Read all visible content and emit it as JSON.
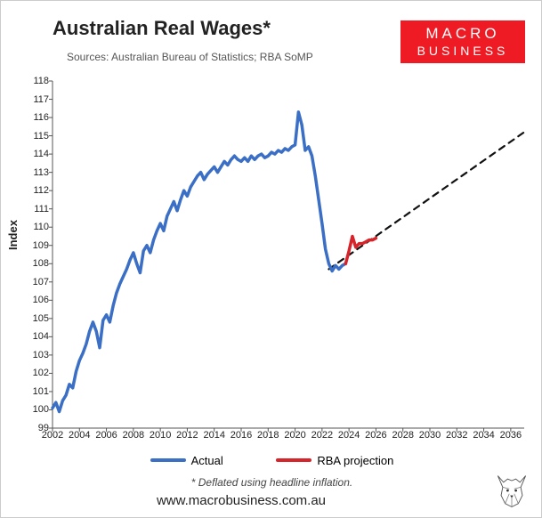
{
  "title": "Australian Real Wages*",
  "sources": "Sources: Australian Bureau of Statistics; RBA SoMP",
  "logo": {
    "line1": "MACRO",
    "line2": "BUSINESS",
    "bg": "#ee1b24",
    "fg": "#ffffff"
  },
  "ylabel": "Index",
  "footnote": "* Deflated using headline inflation.",
  "url": "www.macrobusiness.com.au",
  "legend": {
    "actual": {
      "label": "Actual",
      "color": "#3b6fc6"
    },
    "projection": {
      "label": "RBA projection",
      "color": "#d6242a"
    }
  },
  "chart": {
    "type": "line",
    "background_color": "#ffffff",
    "grid_on": false,
    "xlim": [
      2002,
      2037
    ],
    "ylim": [
      99,
      118
    ],
    "yticks": [
      99,
      100,
      101,
      102,
      103,
      104,
      105,
      106,
      107,
      108,
      109,
      110,
      111,
      112,
      113,
      114,
      115,
      116,
      117,
      118
    ],
    "xticks": [
      2002,
      2004,
      2006,
      2008,
      2010,
      2012,
      2014,
      2016,
      2018,
      2020,
      2022,
      2024,
      2026,
      2028,
      2030,
      2032,
      2034,
      2036
    ],
    "tick_fontsize": 11,
    "tick_color": "#222222",
    "axis_color": "#555555",
    "series": {
      "actual": {
        "color": "#3b6fc6",
        "width": 3.5,
        "dash": "none",
        "points": [
          [
            2002.0,
            100.1
          ],
          [
            2002.25,
            100.4
          ],
          [
            2002.5,
            99.9
          ],
          [
            2002.75,
            100.5
          ],
          [
            2003.0,
            100.8
          ],
          [
            2003.25,
            101.4
          ],
          [
            2003.5,
            101.2
          ],
          [
            2003.75,
            102.1
          ],
          [
            2004.0,
            102.7
          ],
          [
            2004.25,
            103.1
          ],
          [
            2004.5,
            103.6
          ],
          [
            2004.75,
            104.3
          ],
          [
            2005.0,
            104.8
          ],
          [
            2005.25,
            104.3
          ],
          [
            2005.5,
            103.4
          ],
          [
            2005.75,
            104.9
          ],
          [
            2006.0,
            105.2
          ],
          [
            2006.25,
            104.8
          ],
          [
            2006.5,
            105.7
          ],
          [
            2006.75,
            106.4
          ],
          [
            2007.0,
            106.9
          ],
          [
            2007.25,
            107.3
          ],
          [
            2007.5,
            107.7
          ],
          [
            2007.75,
            108.2
          ],
          [
            2008.0,
            108.6
          ],
          [
            2008.25,
            108.0
          ],
          [
            2008.5,
            107.5
          ],
          [
            2008.75,
            108.7
          ],
          [
            2009.0,
            109.0
          ],
          [
            2009.25,
            108.6
          ],
          [
            2009.5,
            109.3
          ],
          [
            2009.75,
            109.8
          ],
          [
            2010.0,
            110.2
          ],
          [
            2010.25,
            109.8
          ],
          [
            2010.5,
            110.6
          ],
          [
            2010.75,
            111.0
          ],
          [
            2011.0,
            111.4
          ],
          [
            2011.25,
            110.9
          ],
          [
            2011.5,
            111.5
          ],
          [
            2011.75,
            112.0
          ],
          [
            2012.0,
            111.7
          ],
          [
            2012.25,
            112.2
          ],
          [
            2012.5,
            112.5
          ],
          [
            2012.75,
            112.8
          ],
          [
            2013.0,
            113.0
          ],
          [
            2013.25,
            112.6
          ],
          [
            2013.5,
            112.9
          ],
          [
            2013.75,
            113.1
          ],
          [
            2014.0,
            113.3
          ],
          [
            2014.25,
            113.0
          ],
          [
            2014.5,
            113.3
          ],
          [
            2014.75,
            113.6
          ],
          [
            2015.0,
            113.4
          ],
          [
            2015.25,
            113.7
          ],
          [
            2015.5,
            113.9
          ],
          [
            2015.75,
            113.7
          ],
          [
            2016.0,
            113.6
          ],
          [
            2016.25,
            113.8
          ],
          [
            2016.5,
            113.6
          ],
          [
            2016.75,
            113.9
          ],
          [
            2017.0,
            113.7
          ],
          [
            2017.25,
            113.9
          ],
          [
            2017.5,
            114.0
          ],
          [
            2017.75,
            113.8
          ],
          [
            2018.0,
            113.9
          ],
          [
            2018.25,
            114.1
          ],
          [
            2018.5,
            114.0
          ],
          [
            2018.75,
            114.2
          ],
          [
            2019.0,
            114.1
          ],
          [
            2019.25,
            114.3
          ],
          [
            2019.5,
            114.2
          ],
          [
            2019.75,
            114.4
          ],
          [
            2020.0,
            114.5
          ],
          [
            2020.25,
            116.3
          ],
          [
            2020.5,
            115.6
          ],
          [
            2020.75,
            114.2
          ],
          [
            2021.0,
            114.4
          ],
          [
            2021.25,
            113.9
          ],
          [
            2021.5,
            112.8
          ],
          [
            2021.75,
            111.5
          ],
          [
            2022.0,
            110.2
          ],
          [
            2022.25,
            108.8
          ],
          [
            2022.5,
            108.0
          ],
          [
            2022.75,
            107.6
          ],
          [
            2023.0,
            107.9
          ],
          [
            2023.25,
            107.7
          ],
          [
            2023.5,
            107.9
          ],
          [
            2023.75,
            108.0
          ]
        ]
      },
      "projection": {
        "color": "#d6242a",
        "width": 3.5,
        "dash": "none",
        "points": [
          [
            2023.75,
            108.0
          ],
          [
            2024.0,
            108.7
          ],
          [
            2024.25,
            109.5
          ],
          [
            2024.5,
            108.9
          ],
          [
            2024.75,
            109.1
          ],
          [
            2025.0,
            109.1
          ],
          [
            2025.25,
            109.2
          ],
          [
            2025.5,
            109.3
          ],
          [
            2025.75,
            109.3
          ],
          [
            2026.0,
            109.4
          ]
        ]
      },
      "trend": {
        "color": "#111111",
        "width": 2.2,
        "dash": "7 6",
        "points": [
          [
            2022.5,
            107.7
          ],
          [
            2037.0,
            115.2
          ]
        ]
      }
    }
  }
}
